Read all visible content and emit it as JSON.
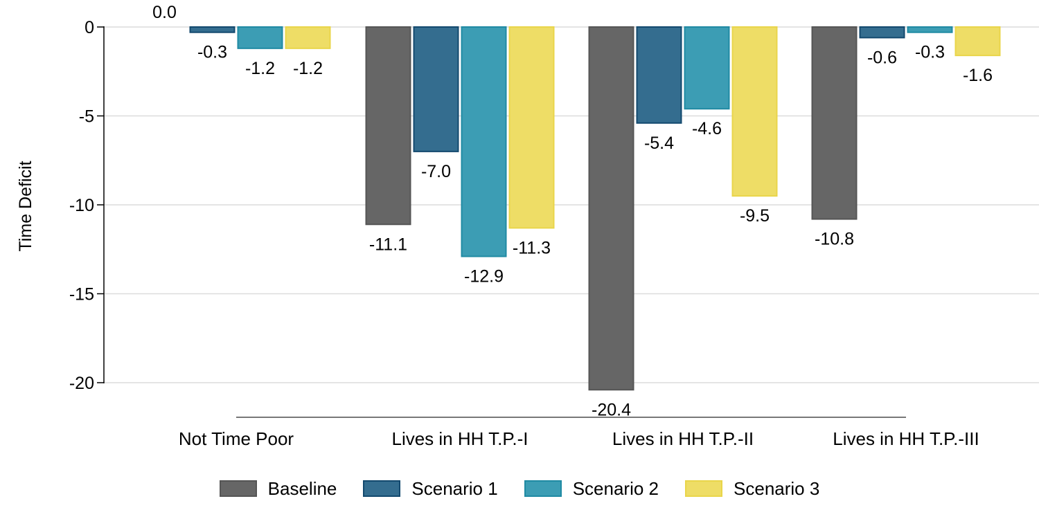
{
  "chart_data": {
    "type": "bar",
    "title": "",
    "xlabel": "",
    "ylabel": "Time Deficit",
    "ylim": [
      -20,
      0
    ],
    "yticks": [
      0,
      -5,
      -10,
      -15,
      -20
    ],
    "grid": true,
    "legend_position": "bottom",
    "categories": [
      "Not Time Poor",
      "Lives in HH T.P.-I",
      "Lives in HH T.P.-II",
      "Lives in HH T.P.-III"
    ],
    "series": [
      {
        "name": "Baseline",
        "fill": "#666666",
        "stroke": "#555555",
        "values": [
          0.0,
          -11.1,
          -20.4,
          -10.8
        ],
        "labels": [
          "0.0",
          "-11.1",
          "-20.4",
          "-10.8"
        ]
      },
      {
        "name": "Scenario 1",
        "fill": "#346d8f",
        "stroke": "#13496e",
        "values": [
          -0.3,
          -7.0,
          -5.4,
          -0.6
        ],
        "labels": [
          "-0.3",
          "-7.0",
          "-5.4",
          "-0.6"
        ]
      },
      {
        "name": "Scenario 2",
        "fill": "#3c9db4",
        "stroke": "#1f8aa3",
        "values": [
          -1.2,
          -12.9,
          -4.6,
          -0.3
        ],
        "labels": [
          "-1.2",
          "-12.9",
          "-4.6",
          "-0.3"
        ]
      },
      {
        "name": "Scenario 3",
        "fill": "#eedd66",
        "stroke": "#e9d54a",
        "values": [
          -1.2,
          -11.3,
          -9.5,
          -1.6
        ],
        "labels": [
          "-1.2",
          "-11.3",
          "-9.5",
          "-1.6"
        ]
      }
    ]
  }
}
